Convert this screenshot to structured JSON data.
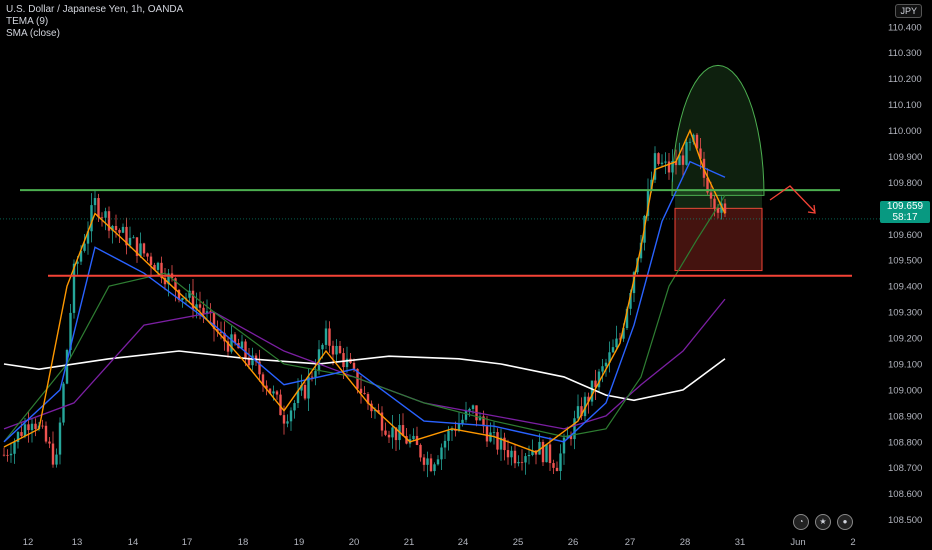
{
  "legend": {
    "symbol": "U.S. Dollar / Japanese Yen, 1h, OANDA",
    "indicator1": "TEMA (9)",
    "indicator2": "SMA (close)"
  },
  "currency_button": "JPY",
  "price_badge": {
    "price": "109.659",
    "countdown": "58:17"
  },
  "colors": {
    "background": "#000000",
    "candle_up": "#26a69a",
    "candle_down": "#ef5350",
    "tema": "#ff9800",
    "ma_blue": "#2962ff",
    "ma_green": "#2e7d32",
    "ma_purple": "#7b1fa2",
    "sma_white": "#ffffff",
    "resistance": "#4caf50",
    "support": "#f44336"
  },
  "chart_data": {
    "type": "candlestick",
    "x_tick_labels": [
      "12",
      "13",
      "14",
      "17",
      "18",
      "19",
      "20",
      "21",
      "24",
      "25",
      "26",
      "27",
      "28",
      "31",
      "Jun",
      "2"
    ],
    "y_tick_labels": [
      "108.500",
      "108.600",
      "108.700",
      "108.800",
      "108.900",
      "109.000",
      "109.100",
      "109.200",
      "109.300",
      "109.400",
      "109.500",
      "109.600",
      "109.700",
      "109.800",
      "109.900",
      "110.000",
      "110.100",
      "110.200",
      "110.300",
      "110.400"
    ],
    "ylim": [
      108.46,
      110.48
    ],
    "last_price": 109.659,
    "resistance_level": 109.77,
    "support_level": 109.44,
    "close_path": [
      [
        0,
        108.75
      ],
      [
        8,
        108.9
      ],
      [
        15,
        108.72
      ],
      [
        20,
        109.45
      ],
      [
        26,
        109.72
      ],
      [
        32,
        109.62
      ],
      [
        38,
        109.55
      ],
      [
        44,
        109.48
      ],
      [
        50,
        109.38
      ],
      [
        56,
        109.32
      ],
      [
        62,
        109.2
      ],
      [
        68,
        109.15
      ],
      [
        74,
        109.05
      ],
      [
        80,
        108.9
      ],
      [
        86,
        109.0
      ],
      [
        92,
        109.2
      ],
      [
        98,
        109.1
      ],
      [
        104,
        108.95
      ],
      [
        110,
        108.85
      ],
      [
        116,
        108.8
      ],
      [
        122,
        108.72
      ],
      [
        128,
        108.85
      ],
      [
        134,
        108.92
      ],
      [
        140,
        108.8
      ],
      [
        146,
        108.75
      ],
      [
        152,
        108.78
      ],
      [
        158,
        108.72
      ],
      [
        164,
        108.9
      ],
      [
        170,
        109.05
      ],
      [
        176,
        109.2
      ],
      [
        182,
        109.6
      ],
      [
        186,
        109.88
      ],
      [
        190,
        109.85
      ],
      [
        194,
        109.9
      ],
      [
        197,
        109.95
      ],
      [
        200,
        109.82
      ],
      [
        203,
        109.74
      ],
      [
        206,
        109.66
      ]
    ],
    "tema_path": [
      [
        0,
        108.78
      ],
      [
        10,
        108.85
      ],
      [
        18,
        109.4
      ],
      [
        26,
        109.68
      ],
      [
        34,
        109.58
      ],
      [
        44,
        109.45
      ],
      [
        56,
        109.3
      ],
      [
        68,
        109.12
      ],
      [
        80,
        108.92
      ],
      [
        92,
        109.15
      ],
      [
        104,
        108.95
      ],
      [
        116,
        108.8
      ],
      [
        128,
        108.85
      ],
      [
        140,
        108.82
      ],
      [
        152,
        108.76
      ],
      [
        164,
        108.88
      ],
      [
        176,
        109.18
      ],
      [
        182,
        109.55
      ],
      [
        186,
        109.85
      ],
      [
        192,
        109.88
      ],
      [
        196,
        110.0
      ],
      [
        200,
        109.85
      ],
      [
        206,
        109.68
      ]
    ],
    "ma_blue_path": [
      [
        0,
        108.8
      ],
      [
        16,
        109.0
      ],
      [
        26,
        109.55
      ],
      [
        40,
        109.45
      ],
      [
        60,
        109.25
      ],
      [
        80,
        109.02
      ],
      [
        100,
        109.08
      ],
      [
        120,
        108.88
      ],
      [
        140,
        108.86
      ],
      [
        160,
        108.8
      ],
      [
        172,
        108.95
      ],
      [
        180,
        109.25
      ],
      [
        188,
        109.65
      ],
      [
        196,
        109.88
      ],
      [
        206,
        109.82
      ]
    ],
    "ma_green_path": [
      [
        0,
        108.8
      ],
      [
        18,
        109.1
      ],
      [
        30,
        109.4
      ],
      [
        46,
        109.45
      ],
      [
        60,
        109.3
      ],
      [
        80,
        109.1
      ],
      [
        100,
        109.05
      ],
      [
        120,
        108.95
      ],
      [
        140,
        108.88
      ],
      [
        160,
        108.82
      ],
      [
        172,
        108.85
      ],
      [
        182,
        109.05
      ],
      [
        190,
        109.4
      ],
      [
        198,
        109.58
      ],
      [
        206,
        109.75
      ]
    ],
    "ma_purple_path": [
      [
        0,
        108.85
      ],
      [
        20,
        108.95
      ],
      [
        40,
        109.25
      ],
      [
        60,
        109.3
      ],
      [
        80,
        109.15
      ],
      [
        100,
        109.05
      ],
      [
        120,
        108.95
      ],
      [
        140,
        108.9
      ],
      [
        160,
        108.85
      ],
      [
        172,
        108.9
      ],
      [
        182,
        109.02
      ],
      [
        194,
        109.15
      ],
      [
        206,
        109.35
      ]
    ],
    "sma_white_path": [
      [
        0,
        109.1
      ],
      [
        10,
        109.08
      ],
      [
        30,
        109.12
      ],
      [
        50,
        109.15
      ],
      [
        70,
        109.12
      ],
      [
        90,
        109.1
      ],
      [
        110,
        109.13
      ],
      [
        130,
        109.12
      ],
      [
        142,
        109.1
      ],
      [
        160,
        109.05
      ],
      [
        172,
        108.98
      ],
      [
        180,
        108.96
      ],
      [
        194,
        109.0
      ],
      [
        206,
        109.12
      ]
    ]
  }
}
